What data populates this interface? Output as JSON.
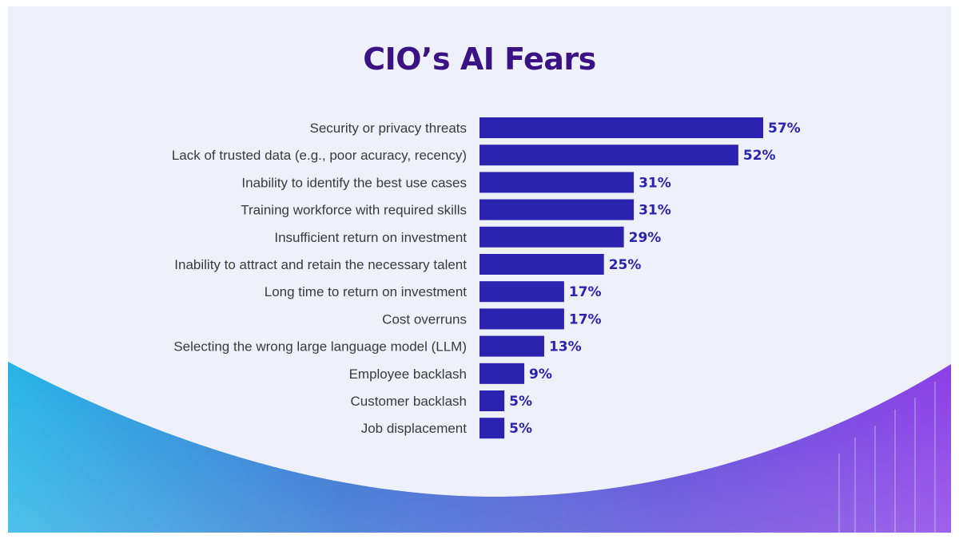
{
  "chart_data": {
    "type": "bar",
    "orientation": "horizontal",
    "title": "CIO’s AI Fears",
    "categories": [
      "Security or privacy threats",
      "Lack of trusted data (e.g., poor acuracy, recency)",
      "Inability to identify the best use cases",
      "Training workforce with required skills",
      "Insufficient return on investment",
      "Inability to attract and retain the necessary talent",
      "Long time to return on investment",
      "Cost overruns",
      "Selecting the wrong large language model (LLM)",
      "Employee backlash",
      "Customer backlash",
      "Job displacement"
    ],
    "values": [
      57,
      52,
      31,
      31,
      29,
      25,
      17,
      17,
      13,
      9,
      5,
      5
    ],
    "value_labels": [
      "57%",
      "52%",
      "31%",
      "31%",
      "29%",
      "25%",
      "17%",
      "17%",
      "13%",
      "9%",
      "5%",
      "5%"
    ],
    "xlim": [
      0,
      57
    ],
    "grid": false,
    "bar_color": "#2b22b0"
  },
  "colors": {
    "background": "#eef1fa",
    "title": "#3b1284",
    "bars": "#2b22b0",
    "wave_left": "#2b8fd8",
    "wave_right": "#7a3de0"
  }
}
